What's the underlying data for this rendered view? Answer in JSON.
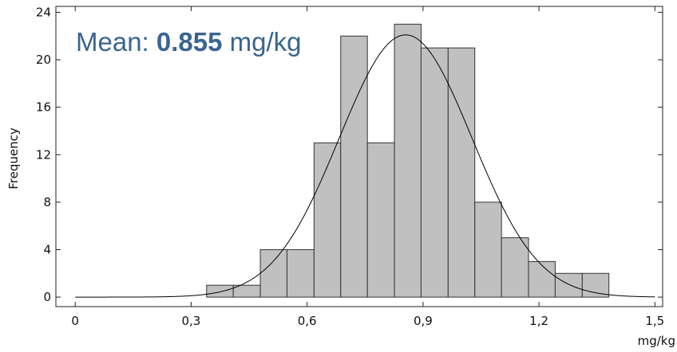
{
  "chart_data": {
    "type": "bar",
    "ylabel": "Frequency",
    "xlabel": "mg/kg",
    "bin_width": 0.0694,
    "bins": [
      {
        "x0": 0.34,
        "x1": 0.409,
        "count": 1
      },
      {
        "x0": 0.409,
        "x1": 0.479,
        "count": 1
      },
      {
        "x0": 0.479,
        "x1": 0.548,
        "count": 4
      },
      {
        "x0": 0.548,
        "x1": 0.618,
        "count": 4
      },
      {
        "x0": 0.618,
        "x1": 0.687,
        "count": 13
      },
      {
        "x0": 0.687,
        "x1": 0.756,
        "count": 22
      },
      {
        "x0": 0.756,
        "x1": 0.826,
        "count": 13
      },
      {
        "x0": 0.826,
        "x1": 0.895,
        "count": 23
      },
      {
        "x0": 0.895,
        "x1": 0.965,
        "count": 21
      },
      {
        "x0": 0.965,
        "x1": 1.034,
        "count": 21
      },
      {
        "x0": 1.034,
        "x1": 1.103,
        "count": 8
      },
      {
        "x0": 1.103,
        "x1": 1.173,
        "count": 5
      },
      {
        "x0": 1.173,
        "x1": 1.242,
        "count": 3
      },
      {
        "x0": 1.242,
        "x1": 1.312,
        "count": 2
      },
      {
        "x0": 1.312,
        "x1": 1.381,
        "count": 2
      }
    ],
    "normal_curve": {
      "mean": 0.855,
      "sd": 0.1717,
      "peak": 22.1,
      "x_range": [
        0,
        1.5
      ]
    },
    "xlim": [
      -0.05,
      1.52
    ],
    "ylim": [
      -0.8,
      24.5
    ],
    "x_ticks": [
      0,
      0.3,
      0.6,
      0.9,
      1.2,
      1.5
    ],
    "x_tick_labels": [
      "0",
      "0,3",
      "0,6",
      "0,9",
      "1,2",
      "1,5"
    ],
    "y_ticks": [
      0,
      4,
      8,
      12,
      16,
      20,
      24
    ],
    "y_tick_labels": [
      "0",
      "4",
      "8",
      "12",
      "16",
      "20",
      "24"
    ],
    "grid": false,
    "bar_color": "#c0c0c0",
    "bar_edge_color": "#333333",
    "curve_color": "#000000",
    "annotation": {
      "prefix": "Mean: ",
      "value": "0.855",
      "unit": " mg/kg",
      "color": "#3a6591"
    }
  }
}
